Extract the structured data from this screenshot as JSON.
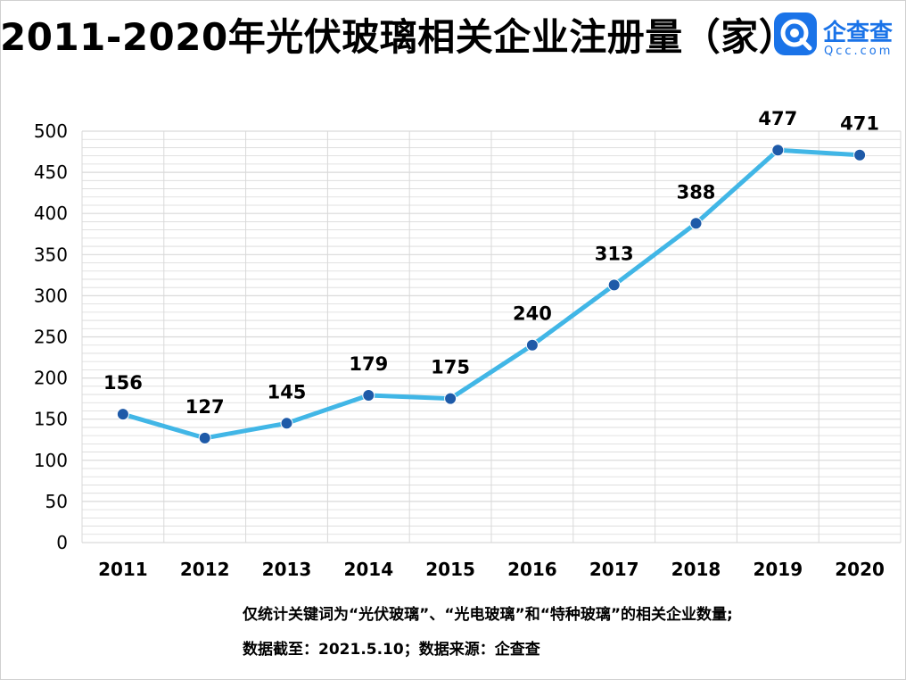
{
  "title": "2011-2020年光伏玻璃相关企业注册量（家）",
  "logo": {
    "name": "企查查",
    "url": "Qcc.com",
    "color": "#1a73e8"
  },
  "footnotes": [
    "仅统计关键词为“光伏玻璃”、“光电玻璃”和“特种玻璃”的相关企业数量;",
    "数据截至：2021.5.10；数据来源：企查查"
  ],
  "colors": {
    "line": "#41b6e6",
    "point": "#1e5aa8",
    "grid": "#d9d9d9"
  },
  "chart_data": {
    "type": "line",
    "title": "2011-2020年光伏玻璃相关企业注册量（家）",
    "categories": [
      "2011",
      "2012",
      "2013",
      "2014",
      "2015",
      "2016",
      "2017",
      "2018",
      "2019",
      "2020"
    ],
    "values": [
      156,
      127,
      145,
      179,
      175,
      240,
      313,
      388,
      477,
      471
    ],
    "ylim": [
      0,
      500
    ],
    "yticks": [
      0,
      50,
      100,
      150,
      200,
      250,
      300,
      350,
      400,
      450,
      500
    ],
    "xlabel": "",
    "ylabel": "",
    "grid": true,
    "data_labels": true
  }
}
